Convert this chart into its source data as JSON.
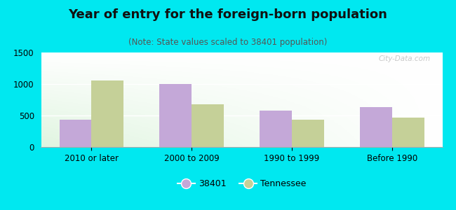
{
  "title": "Year of entry for the foreign-born population",
  "subtitle": "(Note: State values scaled to 38401 population)",
  "categories": [
    "2010 or later",
    "2000 to 2009",
    "1990 to 1999",
    "Before 1990"
  ],
  "series_38401": [
    430,
    1005,
    580,
    630
  ],
  "series_tennessee": [
    1055,
    675,
    430,
    465
  ],
  "bar_color_38401": "#c4a8d8",
  "bar_color_tennessee": "#c5d098",
  "legend_labels": [
    "38401",
    "Tennessee"
  ],
  "ylim": [
    0,
    1500
  ],
  "yticks": [
    0,
    500,
    1000,
    1500
  ],
  "background_outer": "#00e8f0",
  "bar_width": 0.32,
  "title_fontsize": 13,
  "subtitle_fontsize": 8.5,
  "tick_fontsize": 8.5,
  "legend_fontsize": 9
}
